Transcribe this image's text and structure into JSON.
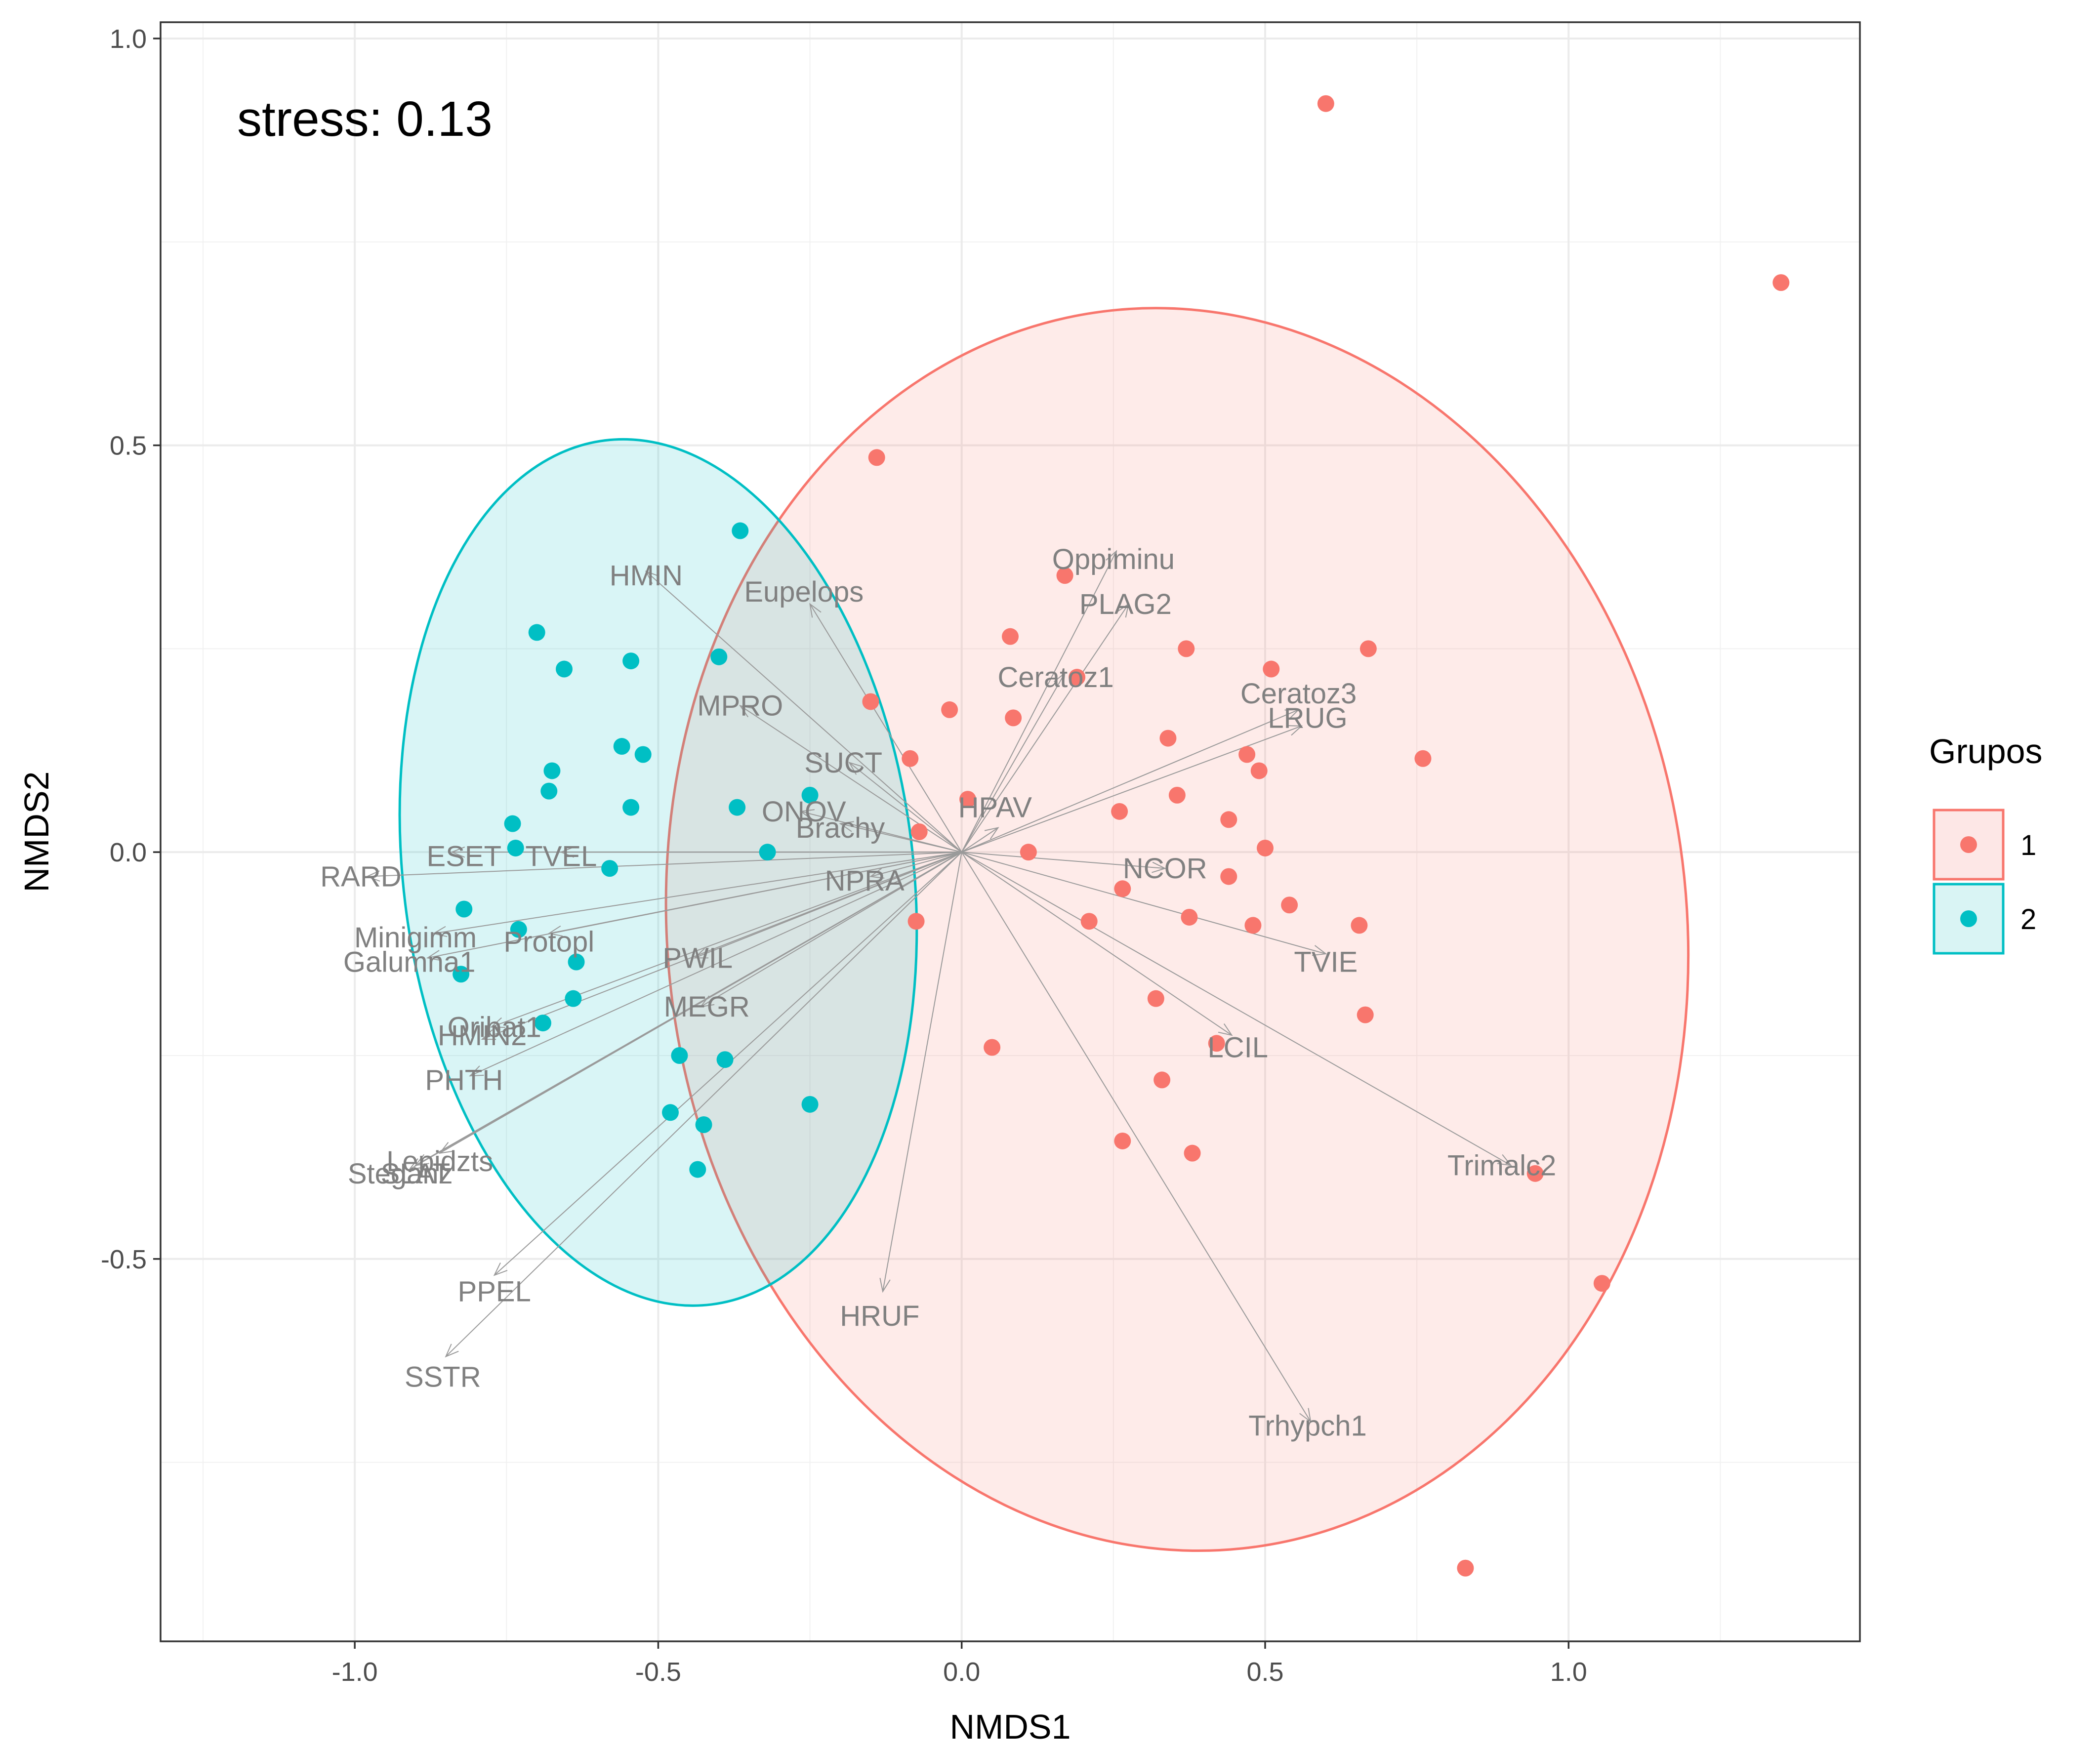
{
  "chart_data": {
    "type": "scatter",
    "title": "",
    "xlabel": "NMDS1",
    "ylabel": "NMDS2",
    "xlim": [
      -1.32,
      1.48
    ],
    "ylim": [
      -0.97,
      1.02
    ],
    "x_ticks": [
      -1.0,
      -0.5,
      0.0,
      0.5,
      1.0
    ],
    "x_tick_labels": [
      "-1.0",
      "-0.5",
      "0.0",
      "0.5",
      "1.0"
    ],
    "y_ticks": [
      -0.5,
      0.0,
      0.5,
      1.0
    ],
    "y_tick_labels": [
      "-0.5",
      "0.0",
      "0.5",
      "1.0"
    ],
    "grid": true,
    "annotation": "stress: 0.13",
    "legend": {
      "title": "Grupos",
      "placement": "right",
      "entries": [
        {
          "label": "1",
          "color": "#F8766D",
          "fill": "#FDE7E6"
        },
        {
          "label": "2",
          "color": "#00BFC4",
          "fill": "#D9F4F4"
        }
      ]
    },
    "series": [
      {
        "name": "1",
        "color": "#F8766D",
        "points": [
          [
            0.6,
            0.92
          ],
          [
            1.35,
            0.7
          ],
          [
            -0.14,
            0.485
          ],
          [
            0.17,
            0.34
          ],
          [
            0.08,
            0.265
          ],
          [
            0.37,
            0.25
          ],
          [
            0.67,
            0.25
          ],
          [
            0.51,
            0.225
          ],
          [
            0.19,
            0.215
          ],
          [
            -0.15,
            0.185
          ],
          [
            -0.02,
            0.175
          ],
          [
            0.085,
            0.165
          ],
          [
            0.34,
            0.14
          ],
          [
            -0.085,
            0.115
          ],
          [
            0.47,
            0.12
          ],
          [
            0.76,
            0.115
          ],
          [
            0.49,
            0.1
          ],
          [
            0.355,
            0.07
          ],
          [
            0.26,
            0.05
          ],
          [
            0.44,
            0.04
          ],
          [
            0.01,
            0.065
          ],
          [
            -0.07,
            0.025
          ],
          [
            0.11,
            0.0
          ],
          [
            0.5,
            0.005
          ],
          [
            0.44,
            -0.03
          ],
          [
            0.265,
            -0.045
          ],
          [
            0.54,
            -0.065
          ],
          [
            0.375,
            -0.08
          ],
          [
            0.21,
            -0.085
          ],
          [
            0.48,
            -0.09
          ],
          [
            0.655,
            -0.09
          ],
          [
            -0.075,
            -0.085
          ],
          [
            0.32,
            -0.18
          ],
          [
            0.665,
            -0.2
          ],
          [
            0.42,
            -0.235
          ],
          [
            0.05,
            -0.24
          ],
          [
            0.33,
            -0.28
          ],
          [
            0.265,
            -0.355
          ],
          [
            0.38,
            -0.37
          ],
          [
            0.945,
            -0.395
          ],
          [
            1.055,
            -0.53
          ],
          [
            0.83,
            -0.88
          ]
        ]
      },
      {
        "name": "2",
        "color": "#00BFC4",
        "points": [
          [
            -0.365,
            0.395
          ],
          [
            -0.7,
            0.27
          ],
          [
            -0.655,
            0.225
          ],
          [
            -0.545,
            0.235
          ],
          [
            -0.4,
            0.24
          ],
          [
            -0.56,
            0.13
          ],
          [
            -0.525,
            0.12
          ],
          [
            -0.675,
            0.1
          ],
          [
            -0.68,
            0.075
          ],
          [
            -0.25,
            0.07
          ],
          [
            -0.545,
            0.055
          ],
          [
            -0.37,
            0.055
          ],
          [
            -0.74,
            0.035
          ],
          [
            -0.735,
            0.005
          ],
          [
            -0.32,
            0.0
          ],
          [
            -0.58,
            -0.02
          ],
          [
            -0.82,
            -0.07
          ],
          [
            -0.73,
            -0.095
          ],
          [
            -0.825,
            -0.15
          ],
          [
            -0.635,
            -0.135
          ],
          [
            -0.64,
            -0.18
          ],
          [
            -0.69,
            -0.21
          ],
          [
            -0.465,
            -0.25
          ],
          [
            -0.39,
            -0.255
          ],
          [
            -0.48,
            -0.32
          ],
          [
            -0.25,
            -0.31
          ],
          [
            -0.425,
            -0.335
          ],
          [
            -0.435,
            -0.39
          ]
        ]
      }
    ],
    "ellipses": [
      {
        "group": "1",
        "cx": 0.355,
        "cy": -0.095,
        "rx": 0.84,
        "ry": 0.765,
        "angle_deg": -6
      },
      {
        "group": "2",
        "cx": -0.5,
        "cy": -0.025,
        "rx": 0.42,
        "ry": 0.535,
        "angle_deg": -7
      }
    ],
    "vectors": [
      {
        "label": "Oppiminu",
        "x": 0.255,
        "y": 0.37,
        "lx": 0.25,
        "ly": 0.36
      },
      {
        "label": "PLAG2",
        "x": 0.275,
        "y": 0.305,
        "lx": 0.27,
        "ly": 0.305
      },
      {
        "label": "Ceratoz1",
        "x": 0.17,
        "y": 0.22,
        "lx": 0.155,
        "ly": 0.215
      },
      {
        "label": "Ceratoz3",
        "x": 0.555,
        "y": 0.175,
        "lx": 0.555,
        "ly": 0.195
      },
      {
        "label": "LRUG",
        "x": 0.56,
        "y": 0.155,
        "lx": 0.57,
        "ly": 0.165
      },
      {
        "label": "HPAV",
        "x": 0.06,
        "y": 0.03,
        "lx": 0.055,
        "ly": 0.055
      },
      {
        "label": "NCOR",
        "x": 0.335,
        "y": -0.02,
        "lx": 0.335,
        "ly": -0.02
      },
      {
        "label": "TVIE",
        "x": 0.6,
        "y": -0.125,
        "lx": 0.6,
        "ly": -0.135
      },
      {
        "label": "LCIL",
        "x": 0.445,
        "y": -0.225,
        "lx": 0.455,
        "ly": -0.24
      },
      {
        "label": "Trimalc2",
        "x": 0.905,
        "y": -0.385,
        "lx": 0.89,
        "ly": -0.385
      },
      {
        "label": "Trhypch1",
        "x": 0.575,
        "y": -0.7,
        "lx": 0.57,
        "ly": -0.705
      },
      {
        "label": "HRUF",
        "x": -0.13,
        "y": -0.54,
        "lx": -0.135,
        "ly": -0.57
      },
      {
        "label": "HMIN",
        "x": -0.52,
        "y": 0.345,
        "lx": -0.52,
        "ly": 0.34
      },
      {
        "label": "Eupelops",
        "x": -0.25,
        "y": 0.305,
        "lx": -0.26,
        "ly": 0.32
      },
      {
        "label": "MPRO",
        "x": -0.365,
        "y": 0.18,
        "lx": -0.365,
        "ly": 0.18
      },
      {
        "label": "SUCT",
        "x": -0.185,
        "y": 0.11,
        "lx": -0.195,
        "ly": 0.11
      },
      {
        "label": "ONOV",
        "x": -0.265,
        "y": 0.05,
        "lx": -0.26,
        "ly": 0.05
      },
      {
        "label": "Brachy",
        "x": -0.2,
        "y": 0.035,
        "lx": -0.2,
        "ly": 0.03
      },
      {
        "label": "ESET",
        "x": -0.84,
        "y": 0.0,
        "lx": -0.82,
        "ly": -0.005
      },
      {
        "label": "TVEL",
        "x": -0.66,
        "y": 0.0,
        "lx": -0.66,
        "ly": -0.005
      },
      {
        "label": "RARD",
        "x": -0.98,
        "y": -0.03,
        "lx": -0.99,
        "ly": -0.03
      },
      {
        "label": "NPRA",
        "x": -0.15,
        "y": -0.03,
        "lx": -0.16,
        "ly": -0.035
      },
      {
        "label": "Minigimm",
        "x": -0.87,
        "y": -0.1,
        "lx": -0.9,
        "ly": -0.105
      },
      {
        "label": "Protopl",
        "x": -0.68,
        "y": -0.1,
        "lx": -0.68,
        "ly": -0.11
      },
      {
        "label": "Galumna1",
        "x": -0.88,
        "y": -0.13,
        "lx": -0.91,
        "ly": -0.135
      },
      {
        "label": "PWIL",
        "x": -0.44,
        "y": -0.13,
        "lx": -0.435,
        "ly": -0.13
      },
      {
        "label": "MEGR",
        "x": -0.43,
        "y": -0.19,
        "lx": -0.42,
        "ly": -0.19
      },
      {
        "label": "Oribat1",
        "x": -0.775,
        "y": -0.215,
        "lx": -0.77,
        "ly": -0.215
      },
      {
        "label": "HMIN2",
        "x": -0.79,
        "y": -0.23,
        "lx": -0.79,
        "ly": -0.225
      },
      {
        "label": "PHTH",
        "x": -0.81,
        "y": -0.275,
        "lx": -0.82,
        "ly": -0.28
      },
      {
        "label": "Lepidzts",
        "x": -0.86,
        "y": -0.37,
        "lx": -0.86,
        "ly": -0.38
      },
      {
        "label": "SLAT",
        "x": -0.9,
        "y": -0.385,
        "lx": -0.9,
        "ly": -0.395
      },
      {
        "label": "Steganz",
        "x": -0.91,
        "y": -0.39,
        "lx": -0.925,
        "ly": -0.395
      },
      {
        "label": "PPEL",
        "x": -0.77,
        "y": -0.52,
        "lx": -0.77,
        "ly": -0.54
      },
      {
        "label": "SSTR",
        "x": -0.85,
        "y": -0.62,
        "lx": -0.855,
        "ly": -0.645
      }
    ]
  }
}
